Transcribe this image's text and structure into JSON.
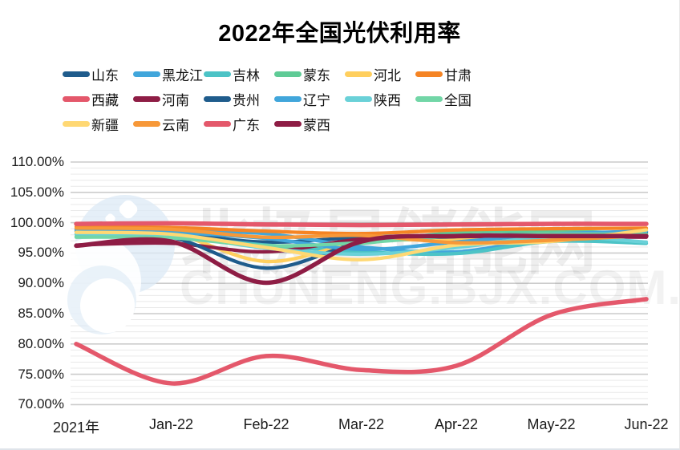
{
  "page": {
    "background": "#ffffff"
  },
  "chart_data": {
    "type": "line",
    "title": "2022年全国光伏利用率",
    "categories": [
      "2021年",
      "Jan-22",
      "Feb-22",
      "Mar-22",
      "Apr-22",
      "May-22",
      "Jun-22"
    ],
    "xlabel": "",
    "ylabel": "",
    "ylim": [
      70,
      110
    ],
    "y_tick_labels": [
      "110.00%",
      "105.00%",
      "100.00%",
      "95.00%",
      "90.00%",
      "85.00%",
      "80.00%",
      "75.00%",
      "70.00%"
    ],
    "grid": {
      "minor_step_percent": 1,
      "major_step_percent": 5,
      "minor_color": "#e9e9e9",
      "major_color": "#cccccc"
    },
    "legend_position": "top-left",
    "unit": "percent",
    "series": [
      {
        "name": "山东",
        "color": "#1F5C8C",
        "values": [
          98.9,
          98.3,
          96.8,
          97.6,
          97.9,
          98.2,
          98.5
        ]
      },
      {
        "name": "黑龙江",
        "color": "#41A6DB",
        "values": [
          99.0,
          98.6,
          98.2,
          96.0,
          95.2,
          97.6,
          98.4
        ]
      },
      {
        "name": "吉林",
        "color": "#4CC3C6",
        "values": [
          98.1,
          97.7,
          96.3,
          95.2,
          94.9,
          96.9,
          96.6
        ]
      },
      {
        "name": "蒙东",
        "color": "#5FCB96",
        "values": [
          97.7,
          97.9,
          96.1,
          96.6,
          98.4,
          98.6,
          98.2
        ]
      },
      {
        "name": "河北",
        "color": "#FFCF5E",
        "values": [
          98.6,
          98.2,
          93.6,
          96.8,
          97.2,
          97.6,
          98.9
        ]
      },
      {
        "name": "甘肃",
        "color": "#F58424",
        "values": [
          99.3,
          99.2,
          98.6,
          98.2,
          98.8,
          99.0,
          99.1
        ]
      },
      {
        "name": "西藏",
        "color": "#E4586B",
        "values": [
          99.8,
          99.9,
          99.7,
          99.6,
          99.7,
          99.8,
          99.8
        ]
      },
      {
        "name": "河南",
        "color": "#8E1D45",
        "values": [
          96.3,
          96.6,
          95.2,
          97.3,
          97.7,
          97.7,
          97.6
        ]
      },
      {
        "name": "贵州",
        "color": "#1F5C8C",
        "values": [
          98.6,
          97.6,
          92.5,
          96.7,
          97.7,
          98.1,
          98.3
        ]
      },
      {
        "name": "辽宁",
        "color": "#41A6DB",
        "values": [
          98.8,
          98.4,
          97.4,
          95.6,
          96.8,
          98.1,
          98.6
        ]
      },
      {
        "name": "陕西",
        "color": "#6AD1D8",
        "values": [
          98.2,
          97.9,
          95.8,
          94.8,
          95.9,
          97.7,
          96.8
        ]
      },
      {
        "name": "全国",
        "color": "#72D6A7",
        "values": [
          97.6,
          97.5,
          96.2,
          96.7,
          97.8,
          98.1,
          98.1
        ]
      },
      {
        "name": "新疆",
        "color": "#FFD873",
        "values": [
          98.4,
          98.1,
          95.9,
          93.9,
          96.3,
          96.9,
          98.8
        ]
      },
      {
        "name": "云南",
        "color": "#F79838",
        "values": [
          99.1,
          98.9,
          97.6,
          97.9,
          96.7,
          97.1,
          97.9
        ]
      },
      {
        "name": "广东",
        "color": "#E4586B",
        "values": [
          80.0,
          73.5,
          78.0,
          75.7,
          76.4,
          84.8,
          87.4
        ]
      },
      {
        "name": "蒙西",
        "color": "#8E1D45",
        "values": [
          96.2,
          96.9,
          90.1,
          96.9,
          97.8,
          97.8,
          97.8
        ]
      }
    ]
  },
  "watermark": {
    "logo_icon": "star-crescent-logo",
    "line1": "北极星储能网",
    "line2": "CHUNENG.BJX.COM.CN"
  }
}
